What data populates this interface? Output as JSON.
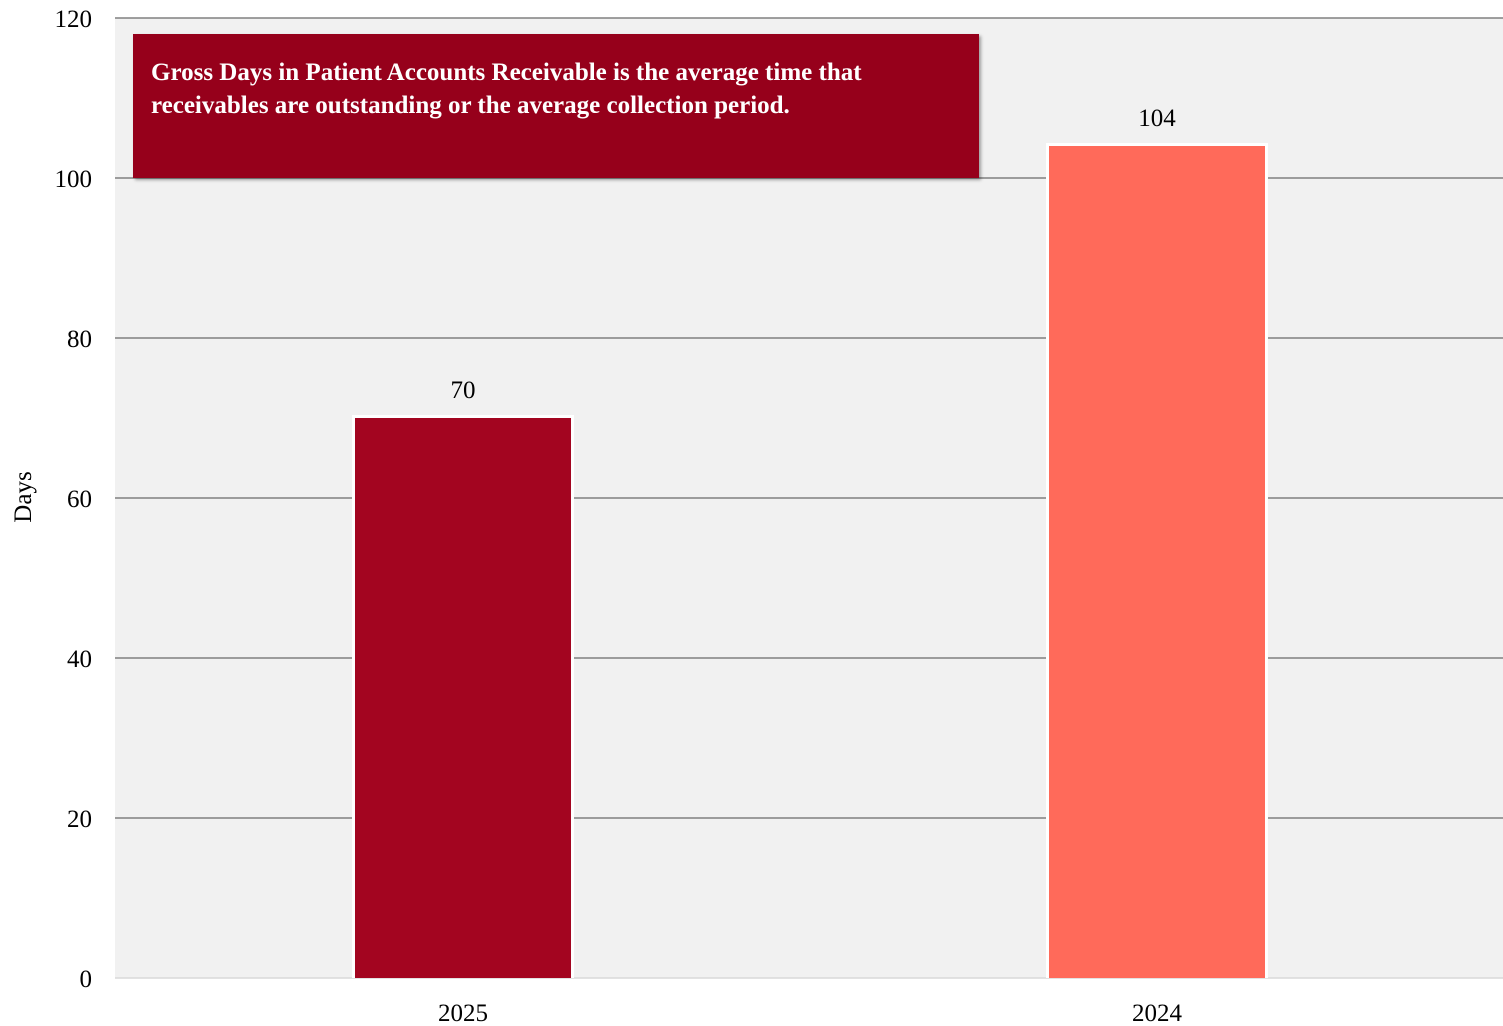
{
  "chart_data": {
    "type": "bar",
    "title": "",
    "xlabel": "",
    "ylabel": "Days",
    "categories": [
      "2025",
      "2024"
    ],
    "values": [
      70,
      104
    ],
    "data_labels": [
      "70",
      "104"
    ],
    "ylim": [
      0,
      120
    ],
    "yticks": [
      0,
      20,
      40,
      60,
      80,
      100,
      120
    ],
    "ytick_labels": [
      "0",
      "20",
      "40",
      "60",
      "80",
      "100",
      "120"
    ],
    "grid": true,
    "legend": "none",
    "bar_colors": [
      "#a30520",
      "#ff6a5a"
    ],
    "plot_background": "#f1f1f1",
    "gridline_color": "#808080",
    "annotation": {
      "text": "Gross Days in Patient Accounts Receivable is the average time that receivables are outstanding or the average collection period.",
      "background": "#96001b",
      "color": "#ffffff"
    }
  }
}
